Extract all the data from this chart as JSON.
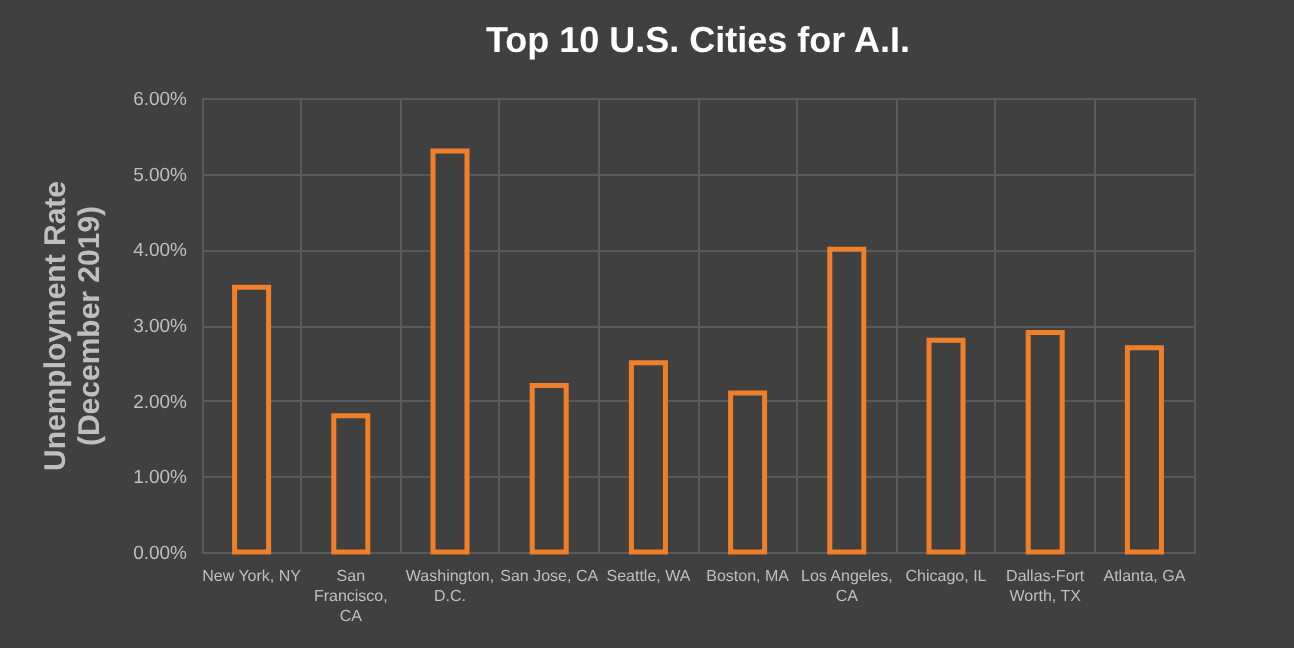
{
  "chart_data": {
    "type": "bar",
    "title": "Top 10 U.S. Cities for A.I.",
    "ylabel": "Unemployment Rate (December 2019)",
    "categories": [
      "New York, NY",
      "San Francisco, CA",
      "Washington, D.C.",
      "San Jose, CA",
      "Seattle, WA",
      "Boston, MA",
      "Los Angeles, CA",
      "Chicago, IL",
      "Dallas-Fort Worth, TX",
      "Atlanta, GA"
    ],
    "values": [
      3.5,
      1.8,
      5.3,
      2.2,
      2.5,
      2.1,
      4.0,
      2.8,
      2.9,
      2.7
    ],
    "color": "#f07f2a",
    "ylim": [
      0,
      6
    ],
    "yticks": [
      {
        "value": 0,
        "label": "0.00%"
      },
      {
        "value": 1,
        "label": "1.00%"
      },
      {
        "value": 2,
        "label": "2.00%"
      },
      {
        "value": 3,
        "label": "3.00%"
      },
      {
        "value": 4,
        "label": "4.00%"
      },
      {
        "value": 5,
        "label": "5.00%"
      },
      {
        "value": 6,
        "label": "6.00%"
      }
    ],
    "grid": true
  }
}
